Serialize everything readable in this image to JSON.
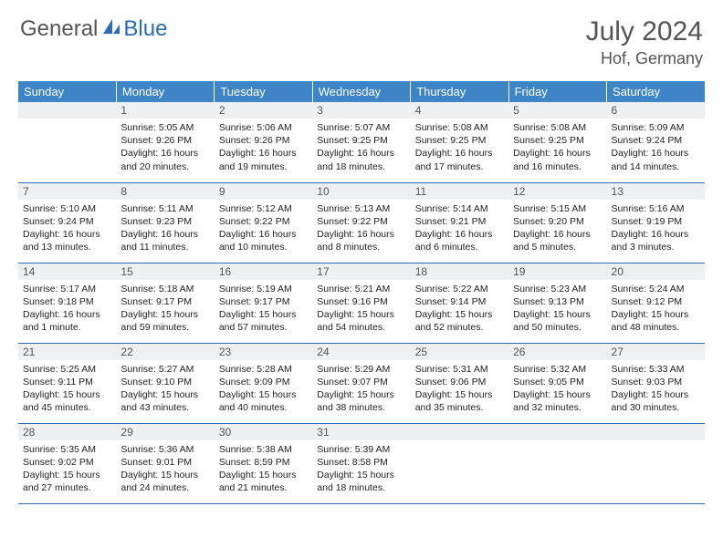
{
  "logo": {
    "text1": "General",
    "text2": "Blue"
  },
  "title": "July 2024",
  "location": "Hof, Germany",
  "colors": {
    "header_bg": "#3d85c6",
    "header_text": "#ffffff",
    "daynum_bg": "#eef0f2",
    "border": "#2a6db5",
    "text": "#333333",
    "logo_gray": "#555555",
    "logo_blue": "#2a6db5"
  },
  "weekdays": [
    "Sunday",
    "Monday",
    "Tuesday",
    "Wednesday",
    "Thursday",
    "Friday",
    "Saturday"
  ],
  "weeks": [
    [
      null,
      {
        "n": "1",
        "sr": "Sunrise: 5:05 AM",
        "ss": "Sunset: 9:26 PM",
        "d1": "Daylight: 16 hours",
        "d2": "and 20 minutes."
      },
      {
        "n": "2",
        "sr": "Sunrise: 5:06 AM",
        "ss": "Sunset: 9:26 PM",
        "d1": "Daylight: 16 hours",
        "d2": "and 19 minutes."
      },
      {
        "n": "3",
        "sr": "Sunrise: 5:07 AM",
        "ss": "Sunset: 9:25 PM",
        "d1": "Daylight: 16 hours",
        "d2": "and 18 minutes."
      },
      {
        "n": "4",
        "sr": "Sunrise: 5:08 AM",
        "ss": "Sunset: 9:25 PM",
        "d1": "Daylight: 16 hours",
        "d2": "and 17 minutes."
      },
      {
        "n": "5",
        "sr": "Sunrise: 5:08 AM",
        "ss": "Sunset: 9:25 PM",
        "d1": "Daylight: 16 hours",
        "d2": "and 16 minutes."
      },
      {
        "n": "6",
        "sr": "Sunrise: 5:09 AM",
        "ss": "Sunset: 9:24 PM",
        "d1": "Daylight: 16 hours",
        "d2": "and 14 minutes."
      }
    ],
    [
      {
        "n": "7",
        "sr": "Sunrise: 5:10 AM",
        "ss": "Sunset: 9:24 PM",
        "d1": "Daylight: 16 hours",
        "d2": "and 13 minutes."
      },
      {
        "n": "8",
        "sr": "Sunrise: 5:11 AM",
        "ss": "Sunset: 9:23 PM",
        "d1": "Daylight: 16 hours",
        "d2": "and 11 minutes."
      },
      {
        "n": "9",
        "sr": "Sunrise: 5:12 AM",
        "ss": "Sunset: 9:22 PM",
        "d1": "Daylight: 16 hours",
        "d2": "and 10 minutes."
      },
      {
        "n": "10",
        "sr": "Sunrise: 5:13 AM",
        "ss": "Sunset: 9:22 PM",
        "d1": "Daylight: 16 hours",
        "d2": "and 8 minutes."
      },
      {
        "n": "11",
        "sr": "Sunrise: 5:14 AM",
        "ss": "Sunset: 9:21 PM",
        "d1": "Daylight: 16 hours",
        "d2": "and 6 minutes."
      },
      {
        "n": "12",
        "sr": "Sunrise: 5:15 AM",
        "ss": "Sunset: 9:20 PM",
        "d1": "Daylight: 16 hours",
        "d2": "and 5 minutes."
      },
      {
        "n": "13",
        "sr": "Sunrise: 5:16 AM",
        "ss": "Sunset: 9:19 PM",
        "d1": "Daylight: 16 hours",
        "d2": "and 3 minutes."
      }
    ],
    [
      {
        "n": "14",
        "sr": "Sunrise: 5:17 AM",
        "ss": "Sunset: 9:18 PM",
        "d1": "Daylight: 16 hours",
        "d2": "and 1 minute."
      },
      {
        "n": "15",
        "sr": "Sunrise: 5:18 AM",
        "ss": "Sunset: 9:17 PM",
        "d1": "Daylight: 15 hours",
        "d2": "and 59 minutes."
      },
      {
        "n": "16",
        "sr": "Sunrise: 5:19 AM",
        "ss": "Sunset: 9:17 PM",
        "d1": "Daylight: 15 hours",
        "d2": "and 57 minutes."
      },
      {
        "n": "17",
        "sr": "Sunrise: 5:21 AM",
        "ss": "Sunset: 9:16 PM",
        "d1": "Daylight: 15 hours",
        "d2": "and 54 minutes."
      },
      {
        "n": "18",
        "sr": "Sunrise: 5:22 AM",
        "ss": "Sunset: 9:14 PM",
        "d1": "Daylight: 15 hours",
        "d2": "and 52 minutes."
      },
      {
        "n": "19",
        "sr": "Sunrise: 5:23 AM",
        "ss": "Sunset: 9:13 PM",
        "d1": "Daylight: 15 hours",
        "d2": "and 50 minutes."
      },
      {
        "n": "20",
        "sr": "Sunrise: 5:24 AM",
        "ss": "Sunset: 9:12 PM",
        "d1": "Daylight: 15 hours",
        "d2": "and 48 minutes."
      }
    ],
    [
      {
        "n": "21",
        "sr": "Sunrise: 5:25 AM",
        "ss": "Sunset: 9:11 PM",
        "d1": "Daylight: 15 hours",
        "d2": "and 45 minutes."
      },
      {
        "n": "22",
        "sr": "Sunrise: 5:27 AM",
        "ss": "Sunset: 9:10 PM",
        "d1": "Daylight: 15 hours",
        "d2": "and 43 minutes."
      },
      {
        "n": "23",
        "sr": "Sunrise: 5:28 AM",
        "ss": "Sunset: 9:09 PM",
        "d1": "Daylight: 15 hours",
        "d2": "and 40 minutes."
      },
      {
        "n": "24",
        "sr": "Sunrise: 5:29 AM",
        "ss": "Sunset: 9:07 PM",
        "d1": "Daylight: 15 hours",
        "d2": "and 38 minutes."
      },
      {
        "n": "25",
        "sr": "Sunrise: 5:31 AM",
        "ss": "Sunset: 9:06 PM",
        "d1": "Daylight: 15 hours",
        "d2": "and 35 minutes."
      },
      {
        "n": "26",
        "sr": "Sunrise: 5:32 AM",
        "ss": "Sunset: 9:05 PM",
        "d1": "Daylight: 15 hours",
        "d2": "and 32 minutes."
      },
      {
        "n": "27",
        "sr": "Sunrise: 5:33 AM",
        "ss": "Sunset: 9:03 PM",
        "d1": "Daylight: 15 hours",
        "d2": "and 30 minutes."
      }
    ],
    [
      {
        "n": "28",
        "sr": "Sunrise: 5:35 AM",
        "ss": "Sunset: 9:02 PM",
        "d1": "Daylight: 15 hours",
        "d2": "and 27 minutes."
      },
      {
        "n": "29",
        "sr": "Sunrise: 5:36 AM",
        "ss": "Sunset: 9:01 PM",
        "d1": "Daylight: 15 hours",
        "d2": "and 24 minutes."
      },
      {
        "n": "30",
        "sr": "Sunrise: 5:38 AM",
        "ss": "Sunset: 8:59 PM",
        "d1": "Daylight: 15 hours",
        "d2": "and 21 minutes."
      },
      {
        "n": "31",
        "sr": "Sunrise: 5:39 AM",
        "ss": "Sunset: 8:58 PM",
        "d1": "Daylight: 15 hours",
        "d2": "and 18 minutes."
      },
      null,
      null,
      null
    ]
  ]
}
